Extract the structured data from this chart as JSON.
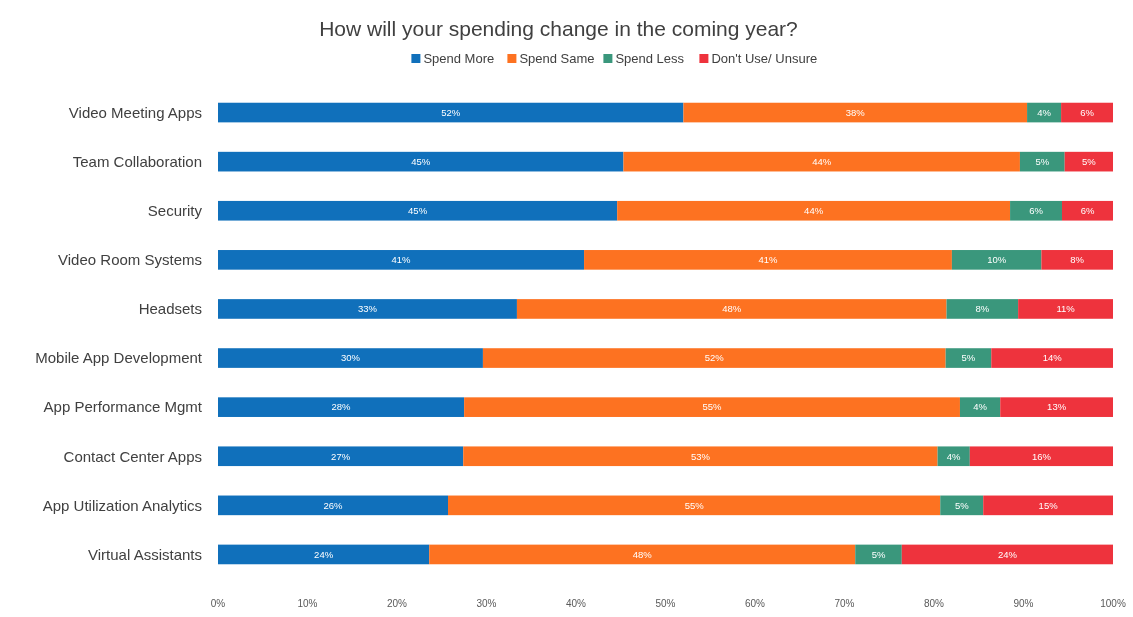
{
  "chart_data": {
    "type": "bar",
    "orientation": "horizontal",
    "stacked": true,
    "title": "How will your spending change in the coming year?",
    "categories": [
      "Video Meeting Apps",
      "Team Collaboration",
      "Security",
      "Video Room Systems",
      "Headsets",
      "Mobile App Development",
      "App Performance Mgmt",
      "Contact Center Apps",
      "App Utilization Analytics",
      "Virtual Assistants"
    ],
    "series": [
      {
        "name": "Spend More",
        "color": "#1070bb",
        "values": [
          52.0,
          45.3,
          44.6,
          40.9,
          33.4,
          29.6,
          27.5,
          27.4,
          25.7,
          23.6
        ],
        "value_labels": [
          "52%",
          "45%",
          "45%",
          "41%",
          "33%",
          "30%",
          "28%",
          "27%",
          "26%",
          "24%"
        ]
      },
      {
        "name": "Spend Same",
        "color": "#fd7221",
        "values": [
          38.4,
          44.3,
          43.9,
          41.1,
          48.0,
          51.7,
          55.4,
          53.0,
          55.0,
          47.6
        ],
        "value_labels": [
          "38%",
          "44%",
          "44%",
          "41%",
          "48%",
          "52%",
          "55%",
          "53%",
          "55%",
          "48%"
        ]
      },
      {
        "name": "Spend Less",
        "color": "#3a977c",
        "values": [
          3.8,
          5.0,
          5.8,
          10.0,
          8.0,
          5.1,
          4.5,
          3.6,
          4.8,
          5.2
        ],
        "value_labels": [
          "4%",
          "5%",
          "6%",
          "10%",
          "8%",
          "5%",
          "4%",
          "4%",
          "5%",
          "5%"
        ]
      },
      {
        "name": "Don't Use/ Unsure",
        "color": "#ee333d",
        "values": [
          5.8,
          5.4,
          5.7,
          8.0,
          10.6,
          13.6,
          12.6,
          16.0,
          14.5,
          23.6
        ],
        "value_labels": [
          "6%",
          "5%",
          "6%",
          "8%",
          "11%",
          "14%",
          "13%",
          "16%",
          "15%",
          "24%"
        ]
      }
    ],
    "xlim": [
      0,
      100
    ],
    "xticks": [
      {
        "value": 0,
        "label": "0%"
      },
      {
        "value": 10,
        "label": "10%"
      },
      {
        "value": 20,
        "label": "20%"
      },
      {
        "value": 30,
        "label": "30%"
      },
      {
        "value": 40,
        "label": "40%"
      },
      {
        "value": 50,
        "label": "50%"
      },
      {
        "value": 60,
        "label": "60%"
      },
      {
        "value": 70,
        "label": "70%"
      },
      {
        "value": 80,
        "label": "80%"
      },
      {
        "value": 90,
        "label": "90%"
      },
      {
        "value": 100,
        "label": "100%"
      }
    ],
    "legend": "top",
    "grid": false
  }
}
